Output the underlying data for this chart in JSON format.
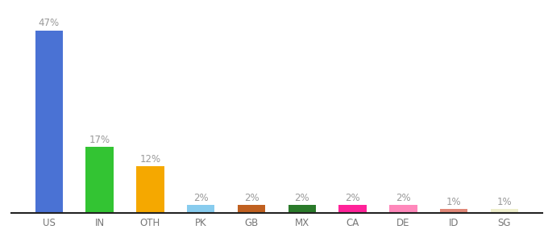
{
  "categories": [
    "US",
    "IN",
    "OTH",
    "PK",
    "GB",
    "MX",
    "CA",
    "DE",
    "ID",
    "SG"
  ],
  "values": [
    47,
    17,
    12,
    2,
    2,
    2,
    2,
    2,
    1,
    1
  ],
  "bar_colors": [
    "#4a72d4",
    "#33c433",
    "#f5a800",
    "#88ccee",
    "#c06020",
    "#2a7a2a",
    "#ff2299",
    "#ff88bb",
    "#e08878",
    "#eeeecc"
  ],
  "ylim": [
    0,
    53
  ],
  "label_color": "#999999",
  "label_fontsize": 8.5,
  "tick_fontsize": 8.5,
  "background_color": "#ffffff"
}
